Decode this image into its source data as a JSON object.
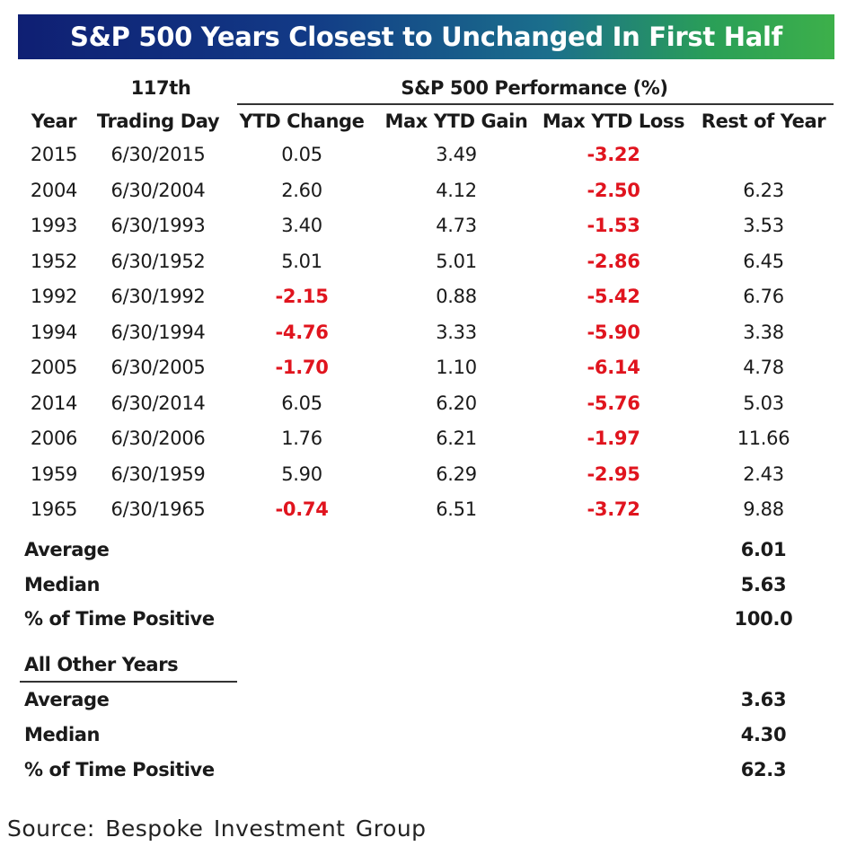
{
  "chart_data": {
    "type": "table",
    "title": "S&P 500 Years Closest to Unchanged In First Half",
    "header_group_left": "117th",
    "header_group_right": "S&P 500 Performance (%)",
    "columns": [
      "Year",
      "Trading Day",
      "YTD Change",
      "Max YTD Gain",
      "Max YTD Loss",
      "Rest of Year"
    ],
    "rows": [
      [
        "2015",
        "6/30/2015",
        "0.05",
        "3.49",
        "-3.22",
        ""
      ],
      [
        "2004",
        "6/30/2004",
        "2.60",
        "4.12",
        "-2.50",
        "6.23"
      ],
      [
        "1993",
        "6/30/1993",
        "3.40",
        "4.73",
        "-1.53",
        "3.53"
      ],
      [
        "1952",
        "6/30/1952",
        "5.01",
        "5.01",
        "-2.86",
        "6.45"
      ],
      [
        "1992",
        "6/30/1992",
        "-2.15",
        "0.88",
        "-5.42",
        "6.76"
      ],
      [
        "1994",
        "6/30/1994",
        "-4.76",
        "3.33",
        "-5.90",
        "3.38"
      ],
      [
        "2005",
        "6/30/2005",
        "-1.70",
        "1.10",
        "-6.14",
        "4.78"
      ],
      [
        "2014",
        "6/30/2014",
        "6.05",
        "6.20",
        "-5.76",
        "5.03"
      ],
      [
        "2006",
        "6/30/2006",
        "1.76",
        "6.21",
        "-1.97",
        "11.66"
      ],
      [
        "1959",
        "6/30/1959",
        "5.90",
        "6.29",
        "-2.95",
        "2.43"
      ],
      [
        "1965",
        "6/30/1965",
        "-0.74",
        "6.51",
        "-3.72",
        "9.88"
      ]
    ],
    "summary": [
      {
        "label": "Average",
        "value": "6.01"
      },
      {
        "label": "Median",
        "value": "5.63"
      },
      {
        "label": "% of Time Positive",
        "value": "100.0"
      }
    ],
    "other_years_title": "All Other Years",
    "other_years": [
      {
        "label": "Average",
        "value": "3.63"
      },
      {
        "label": "Median",
        "value": "4.30"
      },
      {
        "label": "% of Time Positive",
        "value": "62.3"
      }
    ],
    "negative_color": "#e0141e"
  },
  "source": "Source: Bespoke Investment Group"
}
